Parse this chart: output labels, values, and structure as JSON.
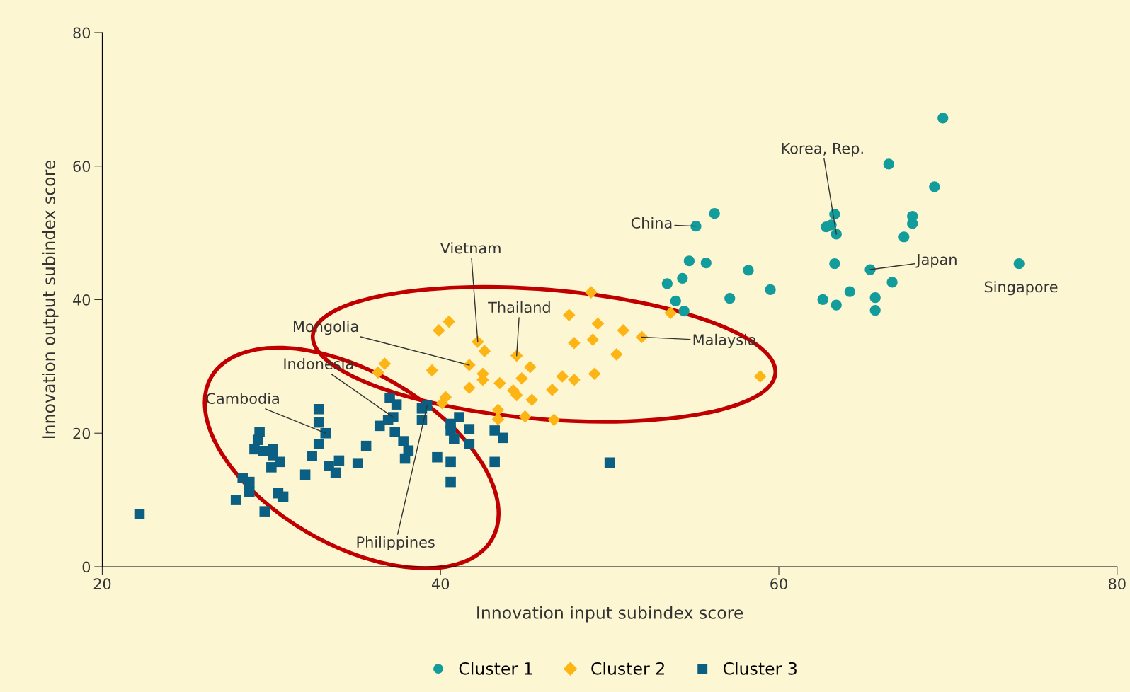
{
  "chart_data": {
    "type": "scatter",
    "xlabel": "Innovation input subindex score",
    "ylabel": "Innovation output subindex score",
    "xlim": [
      20,
      80
    ],
    "ylim": [
      0,
      80
    ],
    "xticks": [
      20,
      40,
      60,
      80
    ],
    "yticks": [
      0,
      20,
      40,
      60,
      80
    ],
    "grid": false,
    "legend": "bottom",
    "series": [
      {
        "name": "Cluster 1",
        "color": "#139c9c",
        "marker": "circle",
        "x": [
          69.7,
          66.5,
          69.2,
          56.2,
          55.1,
          63.3,
          62.8,
          63.1,
          63.4,
          67.9,
          67.9,
          67.4,
          54.7,
          55.7,
          53.4,
          54.3,
          58.2,
          59.5,
          57.1,
          53.9,
          54.4,
          63.3,
          65.4,
          66.7,
          64.2,
          62.6,
          63.4,
          65.7,
          65.7,
          74.2
        ],
        "values": [
          67.2,
          60.3,
          56.9,
          52.9,
          51.0,
          52.8,
          50.9,
          51.2,
          49.8,
          52.5,
          51.4,
          49.4,
          45.8,
          45.5,
          42.4,
          43.2,
          44.4,
          41.5,
          40.2,
          39.8,
          38.3,
          45.4,
          44.5,
          42.6,
          41.2,
          40.0,
          39.2,
          40.3,
          38.4,
          45.4
        ]
      },
      {
        "name": "Cluster 2",
        "color": "#fdb515",
        "marker": "diamond",
        "x": [
          48.9,
          53.6,
          39.9,
          40.5,
          47.6,
          49.3,
          42.2,
          42.6,
          44.5,
          47.9,
          49.0,
          50.8,
          51.9,
          50.4,
          58.9,
          36.7,
          36.3,
          39.5,
          41.7,
          42.5,
          42.5,
          45.3,
          44.8,
          41.7,
          43.5,
          44.3,
          44.5,
          45.4,
          47.2,
          47.9,
          49.1,
          46.6,
          40.3,
          40.1,
          43.4,
          45.0,
          46.7,
          43.4
        ],
        "values": [
          41.1,
          38.0,
          35.4,
          36.7,
          37.7,
          36.4,
          33.7,
          32.3,
          31.6,
          33.5,
          34.0,
          35.4,
          34.4,
          31.8,
          28.5,
          30.4,
          29.1,
          29.4,
          30.2,
          28.9,
          28.0,
          29.9,
          28.2,
          26.8,
          27.5,
          26.4,
          25.7,
          25.0,
          28.5,
          28.0,
          28.9,
          26.5,
          25.4,
          24.5,
          23.5,
          22.5,
          22.0,
          22.1
        ]
      },
      {
        "name": "Cluster 3",
        "color": "#0a5f82",
        "marker": "square",
        "x": [
          32.8,
          32.8,
          33.2,
          32.8,
          29.3,
          29.2,
          29.0,
          29.5,
          30.1,
          30.1,
          30.5,
          30.0,
          28.3,
          28.7,
          28.7,
          27.9,
          30.4,
          30.7,
          29.6,
          22.2,
          32.4,
          32.0,
          33.4,
          34.0,
          33.8,
          35.1,
          35.6,
          36.4,
          36.9,
          37.2,
          37.0,
          37.4,
          37.3,
          37.8,
          38.1,
          37.9,
          38.9,
          38.9,
          39.2,
          39.8,
          40.6,
          40.6,
          40.8,
          41.1,
          40.6,
          40.6,
          41.7,
          41.7,
          43.2,
          43.7,
          43.2,
          50.0
        ],
        "values": [
          23.6,
          21.6,
          20.0,
          18.4,
          20.2,
          19.0,
          17.6,
          17.3,
          17.6,
          16.7,
          15.7,
          14.9,
          13.3,
          12.7,
          11.2,
          10.0,
          11.0,
          10.5,
          8.3,
          7.9,
          16.6,
          13.8,
          15.1,
          15.9,
          14.1,
          15.5,
          18.1,
          21.1,
          22.0,
          22.4,
          25.3,
          24.3,
          20.2,
          18.8,
          17.4,
          16.2,
          23.7,
          22.0,
          24.1,
          16.4,
          20.4,
          21.4,
          19.2,
          22.4,
          15.7,
          12.7,
          20.6,
          18.4,
          20.4,
          19.3,
          15.7,
          15.6
        ]
      }
    ],
    "annotations": [
      {
        "text": "Vietnam",
        "x": 42.2,
        "y": 33.7
      },
      {
        "text": "Thailand",
        "x": 44.5,
        "y": 31.6
      },
      {
        "text": "Mongolia",
        "x": 41.7,
        "y": 30.2
      },
      {
        "text": "Malaysia",
        "x": 51.9,
        "y": 34.4
      },
      {
        "text": "Indonesia",
        "x": 37.2,
        "y": 22.4
      },
      {
        "text": "Cambodia",
        "x": 33.2,
        "y": 20.0
      },
      {
        "text": "Philippines",
        "x": 39.2,
        "y": 24.1
      },
      {
        "text": "China",
        "x": 55.1,
        "y": 51.0
      },
      {
        "text": "Korea, Rep.",
        "x": 63.4,
        "y": 49.8
      },
      {
        "text": "Japan",
        "x": 65.4,
        "y": 44.5
      },
      {
        "text": "Singapore",
        "x": 74.2,
        "y": 45.4
      }
    ]
  }
}
